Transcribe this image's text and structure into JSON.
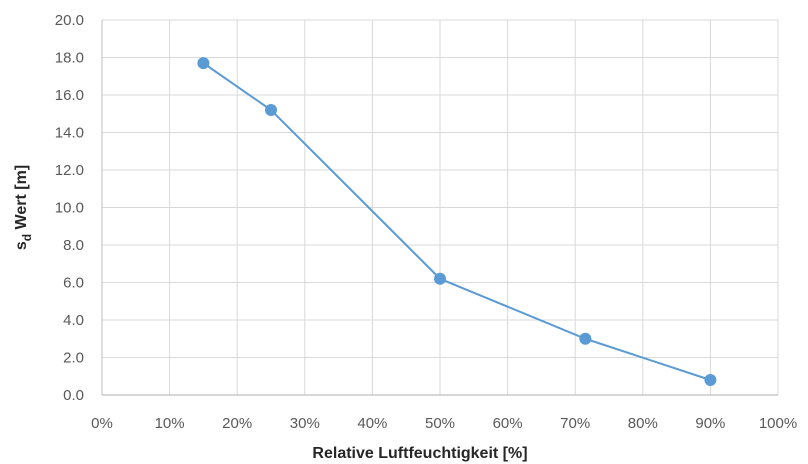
{
  "chart_data": {
    "type": "line",
    "title": "",
    "xlabel": "Relative Luftfeuchtigkeit [%]",
    "ylabel": {
      "main": "s",
      "subscript": "d",
      "rest": " Wert [m]"
    },
    "x_unit": "%",
    "xlim": [
      0,
      100
    ],
    "ylim": [
      0,
      20
    ],
    "x_ticks": [
      0,
      10,
      20,
      30,
      40,
      50,
      60,
      70,
      80,
      90,
      100
    ],
    "y_ticks": [
      0,
      2,
      4,
      6,
      8,
      10,
      12,
      14,
      16,
      18,
      20
    ],
    "x_tick_labels": [
      "0%",
      "10%",
      "20%",
      "30%",
      "40%",
      "50%",
      "60%",
      "70%",
      "80%",
      "90%",
      "100%"
    ],
    "y_tick_labels": [
      "0.0",
      "2.0",
      "4.0",
      "6.0",
      "8.0",
      "10.0",
      "12.0",
      "14.0",
      "16.0",
      "18.0",
      "20.0"
    ],
    "grid": true,
    "legend": "none",
    "series": [
      {
        "color": "#5b9bd5",
        "points": [
          {
            "x": 15,
            "y": 17.7
          },
          {
            "x": 25,
            "y": 15.2
          },
          {
            "x": 50,
            "y": 6.2
          },
          {
            "x": 71.5,
            "y": 3.0
          },
          {
            "x": 90,
            "y": 0.8
          }
        ]
      }
    ],
    "colors": {
      "grid": "#d9d9d9",
      "axis": "#bfbfbf",
      "text": "#595959",
      "title": "#262626"
    }
  }
}
